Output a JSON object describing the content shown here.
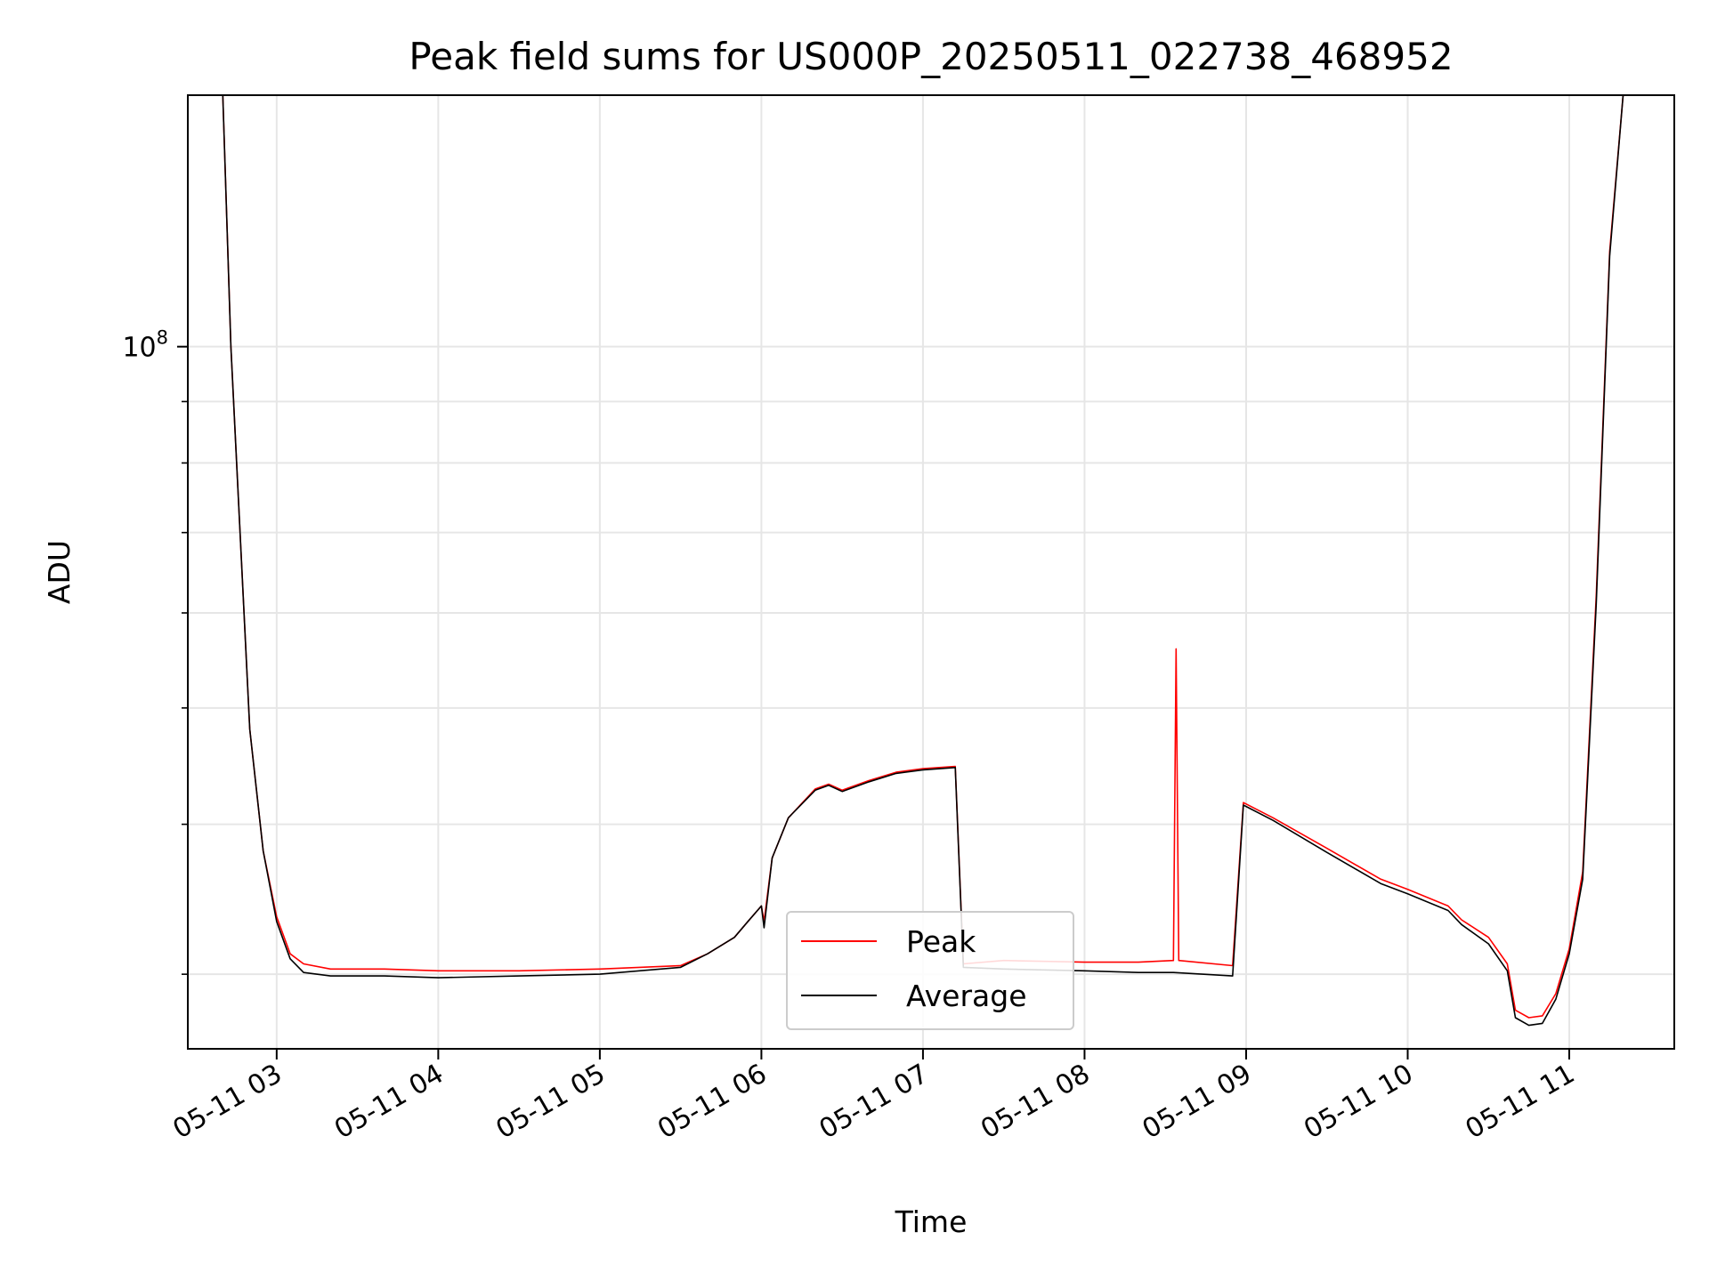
{
  "chart_data": {
    "type": "line",
    "title": "Peak field sums for US000P_20250511_022738_468952",
    "xlabel": "Time",
    "ylabel": "ADU",
    "yscale": "log",
    "grid": true,
    "legend_position": "bottom-center",
    "xlim": [
      "2025-05-11 02:27",
      "2025-05-11 11:39"
    ],
    "ylim": [
      26000000,
      162000000
    ],
    "x_ticks": [
      "05-11 03",
      "05-11 04",
      "05-11 05",
      "05-11 06",
      "05-11 07",
      "05-11 08",
      "05-11 09",
      "05-11 10",
      "05-11 11"
    ],
    "y_ticks": [
      {
        "value": 100000000,
        "label": "10^8"
      }
    ],
    "series": [
      {
        "name": "Peak",
        "color": "#ff0000",
        "points": [
          [
            "2025-05-11 02:27",
            162000000
          ],
          [
            "2025-05-11 02:40",
            162000000
          ],
          [
            "2025-05-11 02:43",
            100000000
          ],
          [
            "2025-05-11 02:50",
            48000000
          ],
          [
            "2025-05-11 02:55",
            38000000
          ],
          [
            "2025-05-11 03:00",
            33500000
          ],
          [
            "2025-05-11 03:05",
            31200000
          ],
          [
            "2025-05-11 03:10",
            30600000
          ],
          [
            "2025-05-11 03:20",
            30300000
          ],
          [
            "2025-05-11 03:40",
            30300000
          ],
          [
            "2025-05-11 04:00",
            30200000
          ],
          [
            "2025-05-11 04:30",
            30200000
          ],
          [
            "2025-05-11 05:00",
            30300000
          ],
          [
            "2025-05-11 05:30",
            30500000
          ],
          [
            "2025-05-11 05:40",
            31200000
          ],
          [
            "2025-05-11 05:50",
            32200000
          ],
          [
            "2025-05-11 05:55",
            33200000
          ],
          [
            "2025-05-11 06:00",
            34200000
          ],
          [
            "2025-05-11 06:01",
            33200000
          ],
          [
            "2025-05-11 06:04",
            37500000
          ],
          [
            "2025-05-11 06:10",
            40500000
          ],
          [
            "2025-05-11 06:20",
            42800000
          ],
          [
            "2025-05-11 06:25",
            43200000
          ],
          [
            "2025-05-11 06:30",
            42700000
          ],
          [
            "2025-05-11 06:40",
            43500000
          ],
          [
            "2025-05-11 06:50",
            44200000
          ],
          [
            "2025-05-11 07:00",
            44500000
          ],
          [
            "2025-05-11 07:12",
            44700000
          ],
          [
            "2025-05-11 07:15",
            30600000
          ],
          [
            "2025-05-11 07:30",
            30800000
          ],
          [
            "2025-05-11 08:00",
            30700000
          ],
          [
            "2025-05-11 08:20",
            30700000
          ],
          [
            "2025-05-11 08:33",
            30800000
          ],
          [
            "2025-05-11 08:34",
            56000000
          ],
          [
            "2025-05-11 08:35",
            30800000
          ],
          [
            "2025-05-11 08:55",
            30500000
          ],
          [
            "2025-05-11 08:59",
            41700000
          ],
          [
            "2025-05-11 09:10",
            40500000
          ],
          [
            "2025-05-11 09:30",
            38200000
          ],
          [
            "2025-05-11 09:50",
            36000000
          ],
          [
            "2025-05-11 10:00",
            35300000
          ],
          [
            "2025-05-11 10:15",
            34200000
          ],
          [
            "2025-05-11 10:20",
            33300000
          ],
          [
            "2025-05-11 10:30",
            32200000
          ],
          [
            "2025-05-11 10:37",
            30600000
          ],
          [
            "2025-05-11 10:40",
            28000000
          ],
          [
            "2025-05-11 10:45",
            27600000
          ],
          [
            "2025-05-11 10:50",
            27700000
          ],
          [
            "2025-05-11 10:55",
            28900000
          ],
          [
            "2025-05-11 11:00",
            31500000
          ],
          [
            "2025-05-11 11:05",
            36500000
          ],
          [
            "2025-05-11 11:10",
            62000000
          ],
          [
            "2025-05-11 11:15",
            120000000
          ],
          [
            "2025-05-11 11:20",
            162000000
          ],
          [
            "2025-05-11 11:39",
            162000000
          ]
        ]
      },
      {
        "name": "Average",
        "color": "#000000",
        "points": [
          [
            "2025-05-11 02:27",
            162000000
          ],
          [
            "2025-05-11 02:40",
            162000000
          ],
          [
            "2025-05-11 02:43",
            100000000
          ],
          [
            "2025-05-11 02:50",
            48000000
          ],
          [
            "2025-05-11 02:55",
            38000000
          ],
          [
            "2025-05-11 03:00",
            33200000
          ],
          [
            "2025-05-11 03:05",
            30900000
          ],
          [
            "2025-05-11 03:10",
            30100000
          ],
          [
            "2025-05-11 03:20",
            29900000
          ],
          [
            "2025-05-11 03:40",
            29900000
          ],
          [
            "2025-05-11 04:00",
            29800000
          ],
          [
            "2025-05-11 04:30",
            29900000
          ],
          [
            "2025-05-11 05:00",
            30000000
          ],
          [
            "2025-05-11 05:30",
            30400000
          ],
          [
            "2025-05-11 05:40",
            31200000
          ],
          [
            "2025-05-11 05:50",
            32200000
          ],
          [
            "2025-05-11 05:55",
            33200000
          ],
          [
            "2025-05-11 06:00",
            34200000
          ],
          [
            "2025-05-11 06:01",
            32800000
          ],
          [
            "2025-05-11 06:04",
            37500000
          ],
          [
            "2025-05-11 06:10",
            40500000
          ],
          [
            "2025-05-11 06:20",
            42700000
          ],
          [
            "2025-05-11 06:25",
            43100000
          ],
          [
            "2025-05-11 06:30",
            42600000
          ],
          [
            "2025-05-11 06:40",
            43400000
          ],
          [
            "2025-05-11 06:50",
            44100000
          ],
          [
            "2025-05-11 07:00",
            44400000
          ],
          [
            "2025-05-11 07:12",
            44600000
          ],
          [
            "2025-05-11 07:15",
            30400000
          ],
          [
            "2025-05-11 07:30",
            30300000
          ],
          [
            "2025-05-11 08:00",
            30200000
          ],
          [
            "2025-05-11 08:20",
            30100000
          ],
          [
            "2025-05-11 08:33",
            30100000
          ],
          [
            "2025-05-11 08:55",
            29900000
          ],
          [
            "2025-05-11 08:59",
            41500000
          ],
          [
            "2025-05-11 09:10",
            40300000
          ],
          [
            "2025-05-11 09:30",
            37900000
          ],
          [
            "2025-05-11 09:50",
            35700000
          ],
          [
            "2025-05-11 10:00",
            35000000
          ],
          [
            "2025-05-11 10:15",
            33900000
          ],
          [
            "2025-05-11 10:20",
            33000000
          ],
          [
            "2025-05-11 10:30",
            31800000
          ],
          [
            "2025-05-11 10:37",
            30200000
          ],
          [
            "2025-05-11 10:40",
            27600000
          ],
          [
            "2025-05-11 10:45",
            27200000
          ],
          [
            "2025-05-11 10:50",
            27300000
          ],
          [
            "2025-05-11 10:55",
            28600000
          ],
          [
            "2025-05-11 11:00",
            31200000
          ],
          [
            "2025-05-11 11:05",
            36000000
          ],
          [
            "2025-05-11 11:10",
            61000000
          ],
          [
            "2025-05-11 11:15",
            119000000
          ],
          [
            "2025-05-11 11:20",
            162000000
          ],
          [
            "2025-05-11 11:39",
            162000000
          ]
        ]
      }
    ]
  }
}
